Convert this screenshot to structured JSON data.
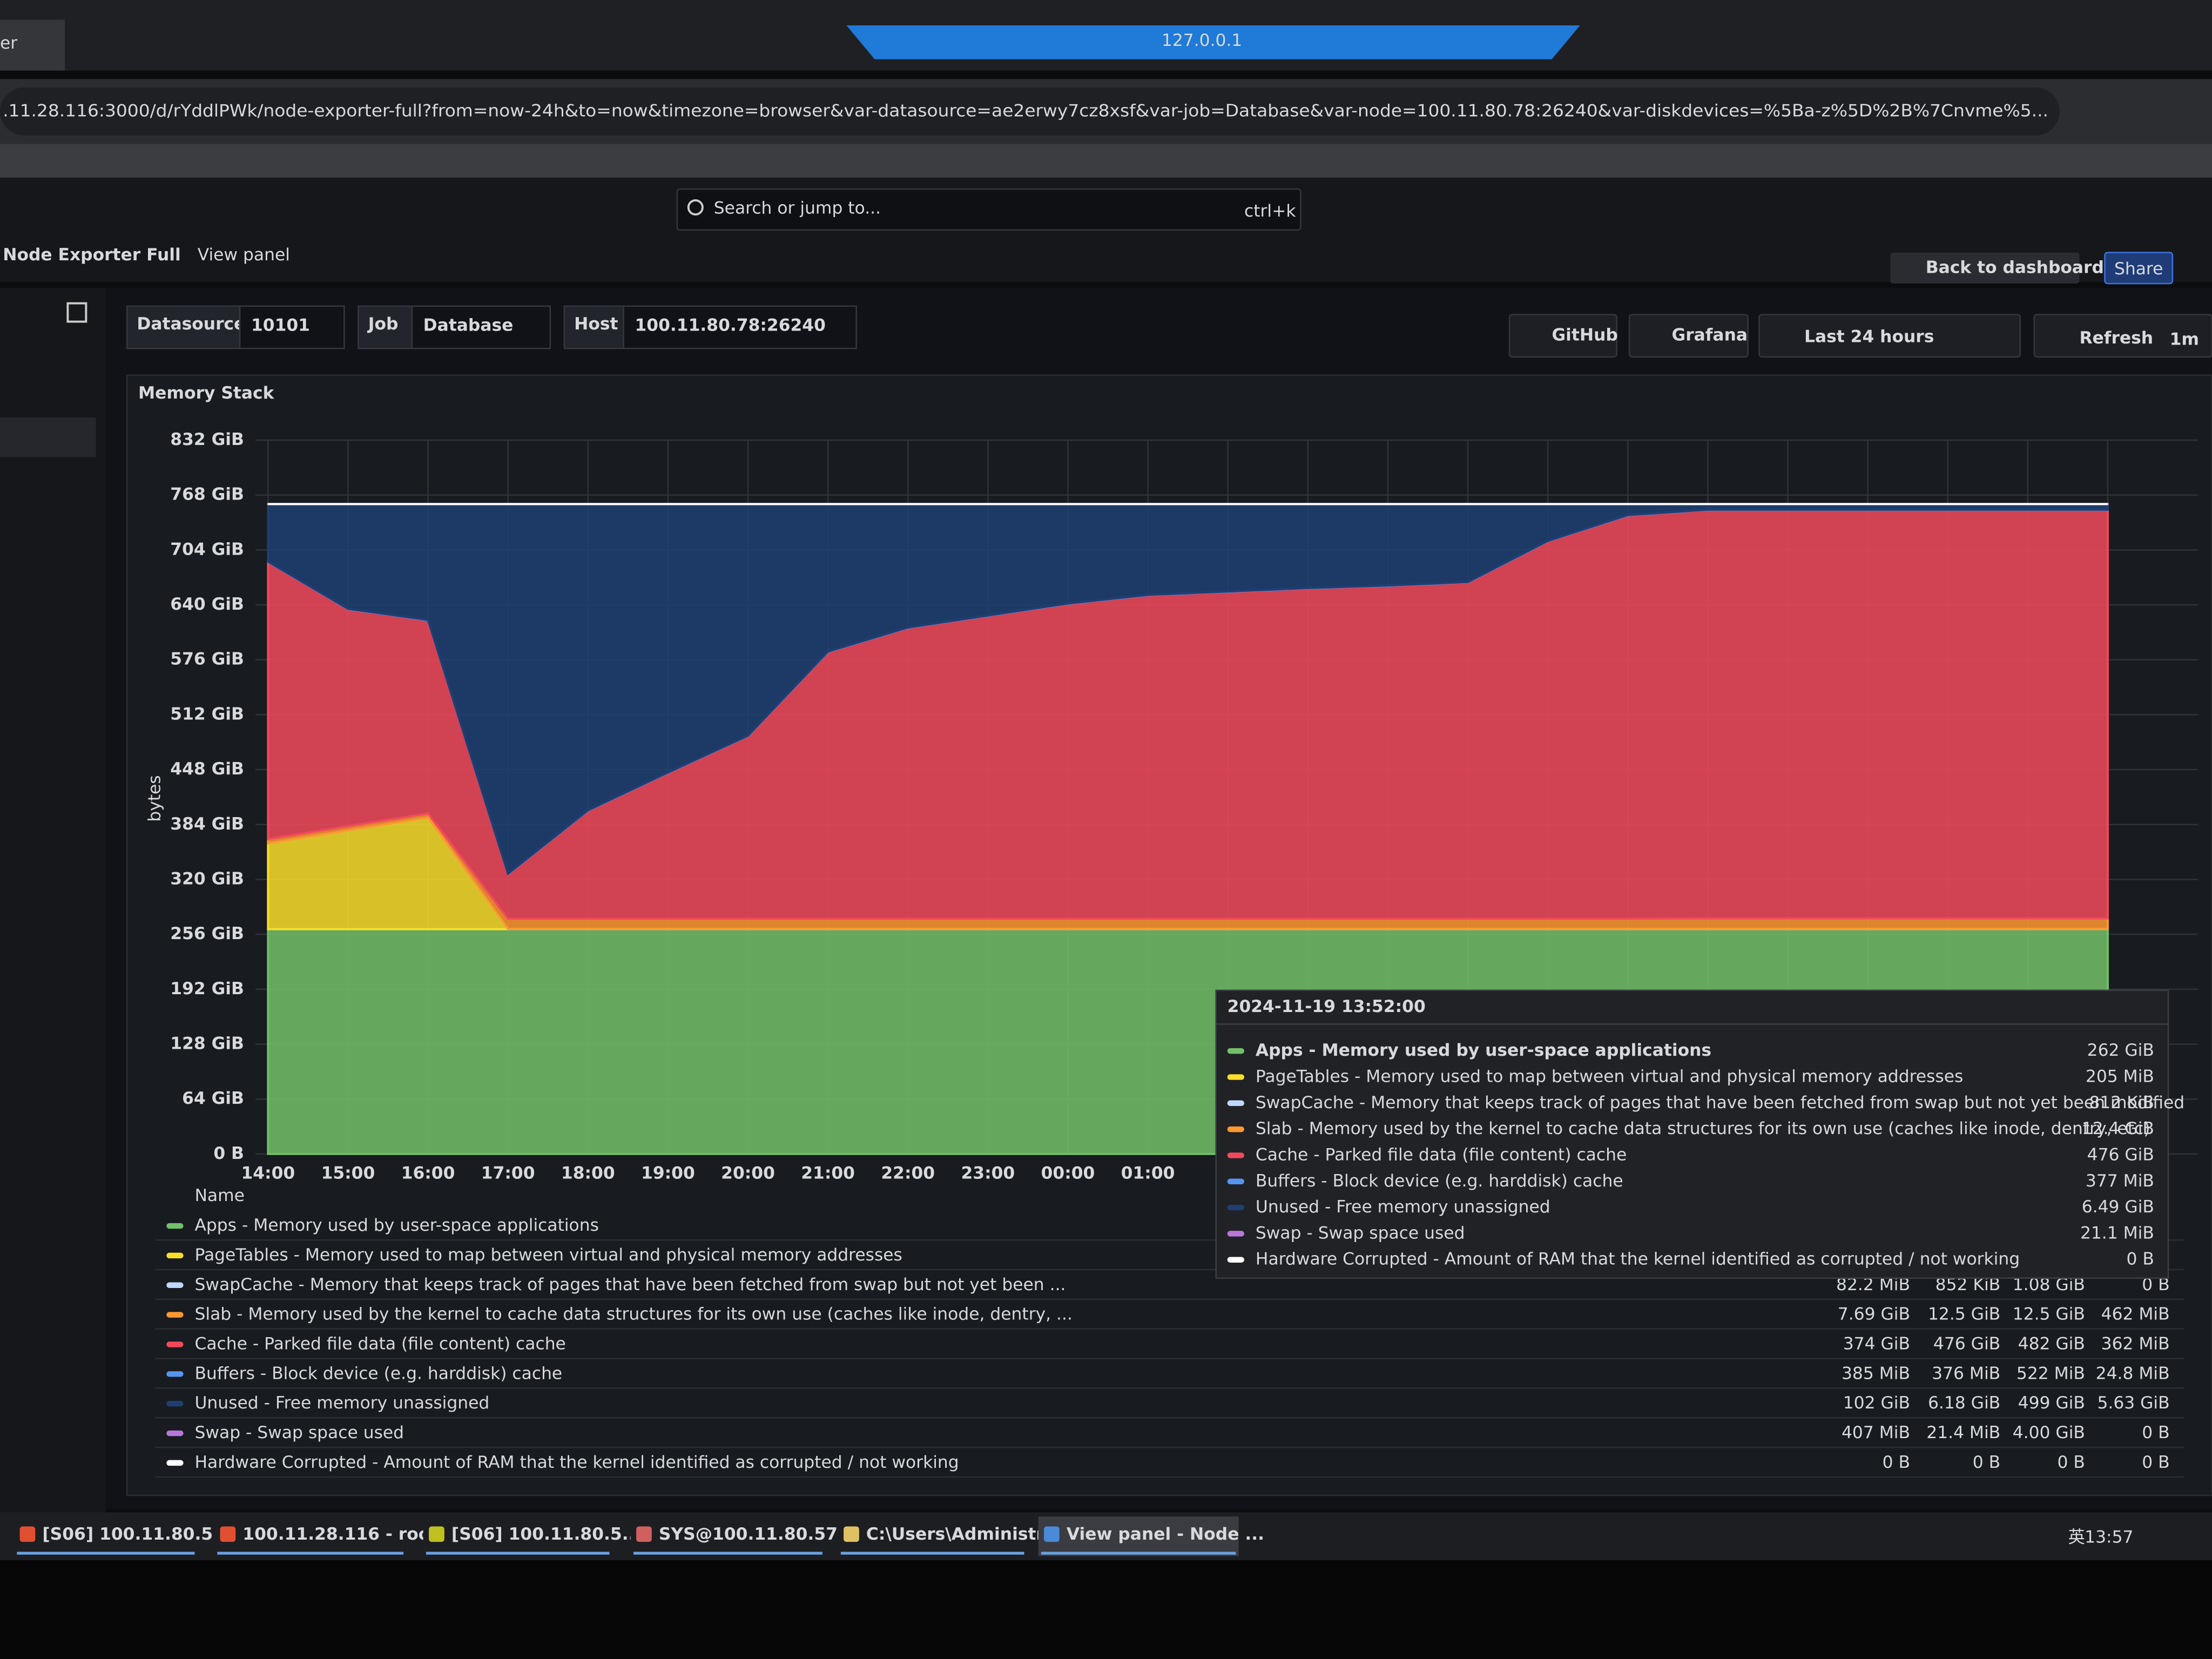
{
  "browser": {
    "tab_title": "er",
    "window_title": "127.0.0.1",
    "url": ".11.28.116:3000/d/rYddlPWk/node-exporter-full?from=now-24h&to=now&timezone=browser&var-datasource=ae2erwy7cz8xsf&var-job=Database&var-node=100.11.80.78:26240&var-diskdevices=%5Ba-z%5D%2B%7Cnvme%5..."
  },
  "topbar": {
    "search": "Search or jump to...",
    "shortcut": "ctrl+k",
    "breadcrumb": [
      "Node Exporter Full",
      "View panel"
    ],
    "back": "Back to dashboard",
    "share": "Share"
  },
  "variables": [
    {
      "label": "Datasource",
      "value": "10101"
    },
    {
      "label": "Job",
      "value": "Database"
    },
    {
      "label": "Host",
      "value": "100.11.80.78:26240"
    }
  ],
  "toolbar": {
    "github": "GitHub",
    "grafana": "Grafana",
    "time_range": "Last 24 hours",
    "refresh": "Refresh",
    "interval": "1m"
  },
  "chart_data": {
    "type": "area",
    "stacked": true,
    "title": "Memory Stack",
    "y_label": "bytes",
    "grid": true,
    "legend_header": "Name",
    "categories": [
      "14:00",
      "15:00",
      "16:00",
      "17:00",
      "18:00",
      "19:00",
      "20:00",
      "21:00",
      "22:00",
      "23:00",
      "00:00",
      "01:00",
      null,
      null,
      null,
      null,
      null,
      null,
      null,
      null,
      null,
      null,
      null,
      null
    ],
    "ylim": [
      0,
      832
    ],
    "yticks": [
      {
        "value": 0,
        "label": "0 B"
      },
      {
        "value": 64,
        "label": "64 GiB"
      },
      {
        "value": 128,
        "label": "128 GiB"
      },
      {
        "value": 192,
        "label": "192 GiB"
      },
      {
        "value": 256,
        "label": "256 GiB"
      },
      {
        "value": 320,
        "label": "320 GiB"
      },
      {
        "value": 384,
        "label": "384 GiB"
      },
      {
        "value": 448,
        "label": "448 GiB"
      },
      {
        "value": 512,
        "label": "512 GiB"
      },
      {
        "value": 576,
        "label": "576 GiB"
      },
      {
        "value": 640,
        "label": "640 GiB"
      },
      {
        "value": 704,
        "label": "704 GiB"
      },
      {
        "value": 768,
        "label": "768 GiB"
      },
      {
        "value": 832,
        "label": "832 GiB"
      }
    ],
    "series": [
      {
        "name": "Apps - Memory used by user-space applications",
        "color": "#73bf69",
        "values": [
          262,
          262,
          262,
          262,
          262,
          262,
          262,
          262,
          262,
          262,
          262,
          262,
          262,
          262,
          262,
          262,
          262,
          262,
          262,
          262,
          262,
          262,
          262,
          262
        ]
      },
      {
        "name": "PageTables - Memory used to map between virtual and physical memory addresses",
        "color": "#fade2a",
        "values": [
          100,
          115,
          130,
          0.2,
          0.2,
          0.2,
          0.2,
          0.2,
          0.2,
          0.2,
          0.2,
          0.2,
          0.2,
          0.2,
          0.2,
          0.2,
          0.2,
          0.2,
          0.2,
          0.2,
          0.2,
          0.2,
          0.2,
          0.2
        ]
      },
      {
        "name": "SwapCache - Memory that keeps track of pages that have been fetched from swap but not yet been ...",
        "color": "#c0d8ff",
        "values": [
          0.0008,
          0.0008,
          0.0008,
          0.0008,
          0.0008,
          0.0008,
          0.0008,
          0.0008,
          0.0008,
          0.0008,
          0.0008,
          0.0008,
          0.0008,
          0.0008,
          0.0008,
          0.0008,
          0.0008,
          0.0008,
          0.0008,
          0.0008,
          0.0008,
          0.0008,
          0.0008,
          0.0008
        ],
        "legend_values": [
          "82.2 MiB",
          "852 KiB",
          "1.08 GiB",
          "0 B"
        ]
      },
      {
        "name": "Slab - Memory used by the kernel to cache data structures for its own use (caches like inode, dentry, ...",
        "color": "#ff9830",
        "values": [
          5,
          5,
          5,
          12,
          12,
          12,
          12,
          12,
          12,
          12,
          12,
          12,
          12,
          12,
          12,
          12,
          12,
          12,
          12.4,
          12.4,
          12.4,
          12.4,
          12.4,
          12.4
        ],
        "legend_values": [
          "7.69 GiB",
          "12.5 GiB",
          "12.5 GiB",
          "462 MiB"
        ]
      },
      {
        "name": "Cache - Parked file data (file content) cache",
        "color": "#f2495c",
        "values": [
          323,
          253,
          225,
          52,
          126,
          170,
          213,
          311,
          339,
          353,
          367,
          377,
          381,
          385,
          388,
          392,
          440,
          470,
          476,
          476,
          476,
          476,
          476,
          476
        ],
        "legend_values": [
          "374 GiB",
          "476 GiB",
          "482 GiB",
          "362 MiB"
        ]
      },
      {
        "name": "Buffers - Block device (e.g. harddisk) cache",
        "color": "#5794f2",
        "values": [
          0.37,
          0.37,
          0.37,
          0.37,
          0.37,
          0.37,
          0.37,
          0.37,
          0.37,
          0.37,
          0.37,
          0.37,
          0.37,
          0.37,
          0.37,
          0.37,
          0.37,
          0.37,
          0.37,
          0.37,
          0.37,
          0.37,
          0.37,
          0.37
        ],
        "legend_values": [
          "385 MiB",
          "376 MiB",
          "522 MiB",
          "24.8 MiB"
        ]
      },
      {
        "name": "Unused - Free memory unassigned",
        "color": "#1f3f73",
        "values": [
          67.1,
          122.1,
          135.1,
          430.9,
          356.9,
          312.9,
          269.9,
          171.9,
          143.9,
          129.9,
          115.9,
          105.9,
          101.9,
          97.9,
          94.9,
          90.9,
          42.9,
          12.9,
          6.5,
          6.5,
          6.5,
          6.5,
          6.5,
          6.5
        ],
        "legend_values": [
          "102 GiB",
          "6.18 GiB",
          "499 GiB",
          "5.63 GiB"
        ]
      },
      {
        "name": "Swap - Swap space used",
        "color": "#b877d9",
        "values": [
          0.02,
          0.02,
          0.02,
          0.02,
          0.02,
          0.02,
          0.02,
          0.02,
          0.02,
          0.02,
          0.02,
          0.02,
          0.02,
          0.02,
          0.02,
          0.02,
          0.02,
          0.02,
          0.02,
          0.02,
          0.02,
          0.02,
          0.02,
          0.02
        ],
        "legend_values": [
          "407 MiB",
          "21.4 MiB",
          "4.00 GiB",
          "0 B"
        ]
      },
      {
        "name": "Hardware Corrupted - Amount of RAM that the kernel identified as corrupted / not working",
        "color": "#ffffff",
        "values": [
          0,
          0,
          0,
          0,
          0,
          0,
          0,
          0,
          0,
          0,
          0,
          0,
          0,
          0,
          0,
          0,
          0,
          0,
          0,
          0,
          0,
          0,
          0,
          0
        ],
        "legend_values": [
          "0 B",
          "0 B",
          "0 B",
          "0 B"
        ]
      }
    ],
    "tooltip": {
      "time": "2024-11-19 13:52:00",
      "names": [
        "Apps - Memory used by user-space applications",
        "PageTables - Memory used to map between virtual and physical memory addresses",
        "SwapCache - Memory that keeps track of pages that have been fetched from swap but not yet been modified",
        "Slab - Memory used by the kernel to cache data structures for its own use (caches like inode, dentry, etc)",
        "Cache - Parked file data (file content) cache",
        "Buffers - Block device (e.g. harddisk) cache",
        "Unused - Free memory unassigned",
        "Swap - Swap space used",
        "Hardware Corrupted - Amount of RAM that the kernel identified as corrupted / not working"
      ],
      "values": [
        "262 GiB",
        "205 MiB",
        "812 KiB",
        "12.4 GiB",
        "476 GiB",
        "377 MiB",
        "6.49 GiB",
        "21.1 MiB",
        "0 B"
      ]
    }
  },
  "taskbar": {
    "items": [
      "[S06] 100.11.80.5...",
      "100.11.28.116 - roo...",
      "[S06] 100.11.80.5...",
      "SYS@100.11.80.57:1...",
      "C:\\Users\\Administr...",
      "View panel - Node ..."
    ],
    "ime": "英",
    "clock": "13:57"
  }
}
